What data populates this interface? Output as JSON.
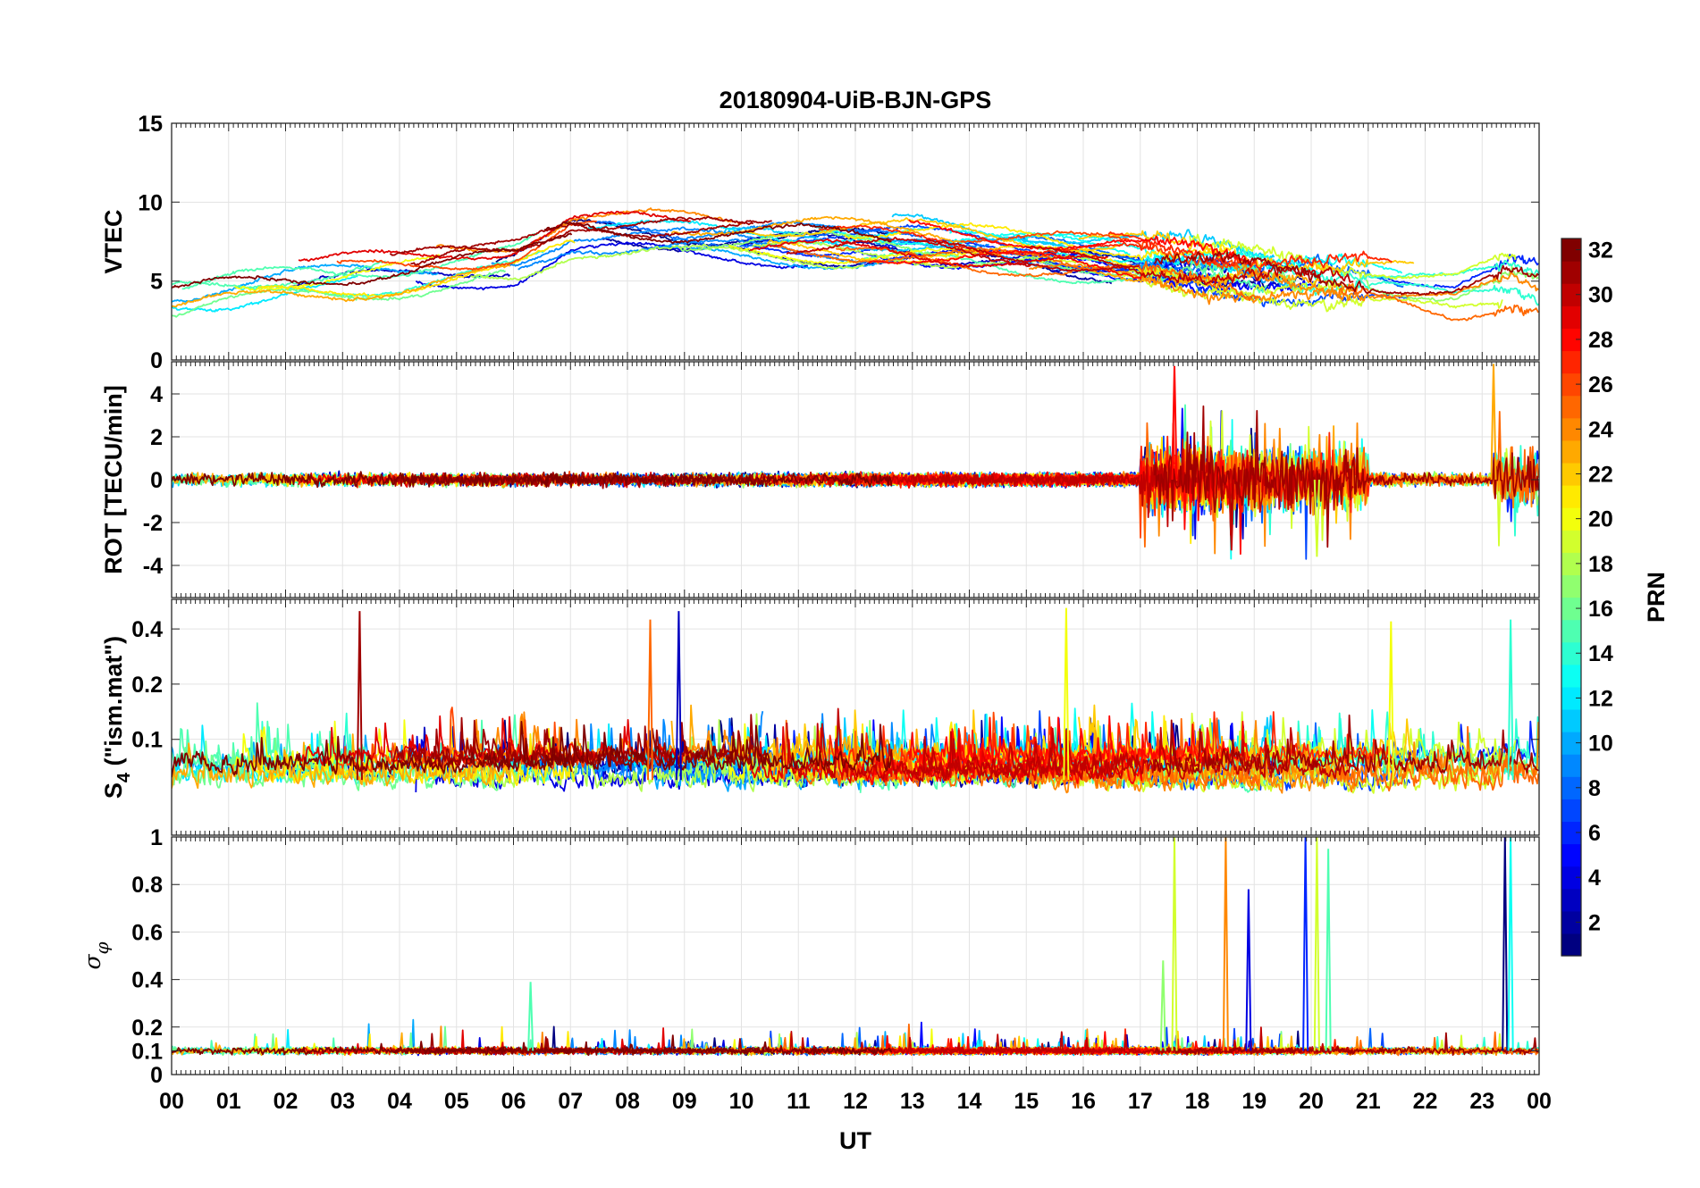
{
  "chart_data": {
    "type": "line",
    "title": "20180904-UiB-BJN-GPS",
    "xlabel": "UT",
    "x_tick_labels": [
      "00",
      "01",
      "02",
      "03",
      "04",
      "05",
      "06",
      "07",
      "08",
      "09",
      "10",
      "11",
      "12",
      "13",
      "14",
      "15",
      "16",
      "17",
      "18",
      "19",
      "20",
      "21",
      "22",
      "23",
      "00"
    ],
    "xlim": [
      0,
      24
    ],
    "grid": true,
    "colorbar": {
      "label": "PRN",
      "range": [
        1,
        32
      ],
      "ticks": [
        "2",
        "4",
        "6",
        "8",
        "10",
        "12",
        "14",
        "16",
        "18",
        "20",
        "22",
        "24",
        "26",
        "28",
        "30",
        "32"
      ],
      "colormap": "jet",
      "placement": "right"
    },
    "panels": [
      {
        "id": "vtec",
        "ylabel": "VTEC",
        "ylim": [
          0,
          15
        ],
        "y_ticks": [
          0,
          5,
          10,
          15
        ],
        "y_tick_labels": [
          "0",
          "5",
          "10",
          "15"
        ],
        "profile_x": [
          0,
          2,
          4,
          6,
          7,
          9,
          11,
          13,
          15,
          17,
          19,
          21,
          22.5,
          23.5,
          24
        ],
        "profile_y": [
          4,
          5,
          5.5,
          6.3,
          8,
          7.6,
          7.5,
          7.3,
          6.8,
          6.2,
          5.5,
          4.8,
          4,
          5,
          4.5
        ],
        "disturbed_intervals": [
          [
            17,
            21
          ],
          [
            23.2,
            24
          ]
        ]
      },
      {
        "id": "rot",
        "ylabel": "ROT [TECU/min]",
        "ylim": [
          -5.5,
          5.5
        ],
        "y_ticks": [
          -4,
          -2,
          0,
          2,
          4
        ],
        "y_tick_labels": [
          "-4",
          "-2",
          "0",
          "2",
          "4"
        ],
        "quiet_amplitude": 0.3,
        "disturbed_intervals": [
          [
            17,
            21
          ],
          [
            23.2,
            24
          ]
        ],
        "peaks": [
          {
            "x": 17.6,
            "y": 5.3
          },
          {
            "x": 23.2,
            "y": 5.4
          },
          {
            "x": 20.1,
            "y": -3.6
          },
          {
            "x": 18.6,
            "y": -3.3
          }
        ]
      },
      {
        "id": "s4",
        "ylabel": "S4 (\"ism.mat\")",
        "ylabel_main": "S",
        "ylabel_sub": "4",
        "ylabel_tail": " (\"ism.mat\")",
        "ylim": [
          0.03,
          0.58
        ],
        "y_ticks": [
          0.1,
          0.2,
          0.4
        ],
        "y_tick_labels": [
          "0.1",
          "0.2",
          "0.4"
        ],
        "log_scale": true,
        "baseline": 0.06,
        "peaks": [
          {
            "x": 3.3,
            "y": 0.5
          },
          {
            "x": 8.9,
            "y": 0.5
          },
          {
            "x": 15.7,
            "y": 0.52
          },
          {
            "x": 8.4,
            "y": 0.45
          },
          {
            "x": 23.5,
            "y": 0.45
          },
          {
            "x": 21.4,
            "y": 0.44
          }
        ]
      },
      {
        "id": "sigma_phi",
        "ylabel": "σφ",
        "ylabel_main": "σ",
        "ylabel_sub": "φ",
        "ylim": [
          0,
          1
        ],
        "y_ticks": [
          0,
          0.1,
          0.2,
          0.4,
          0.6,
          0.8,
          1
        ],
        "y_tick_labels": [
          "0",
          "0.1",
          "0.2",
          "0.4",
          "0.6",
          "0.8",
          "1"
        ],
        "baseline": 0.1,
        "peaks": [
          {
            "x": 17.6,
            "y": 1.0
          },
          {
            "x": 18.5,
            "y": 1.0
          },
          {
            "x": 18.9,
            "y": 0.78
          },
          {
            "x": 19.9,
            "y": 1.0
          },
          {
            "x": 20.1,
            "y": 1.0
          },
          {
            "x": 20.3,
            "y": 0.95
          },
          {
            "x": 23.4,
            "y": 1.0
          },
          {
            "x": 23.5,
            "y": 1.0
          },
          {
            "x": 6.3,
            "y": 0.39
          },
          {
            "x": 17.4,
            "y": 0.48
          }
        ]
      }
    ]
  }
}
